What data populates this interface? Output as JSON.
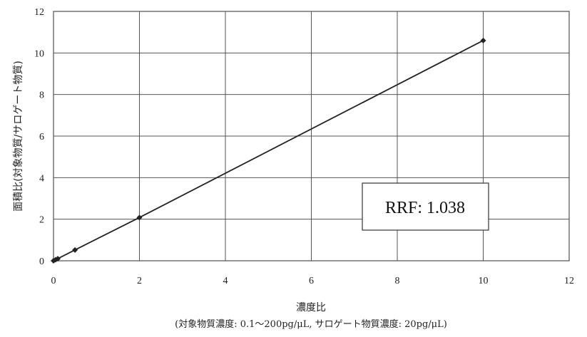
{
  "chart_data": {
    "type": "line",
    "title": "",
    "xlabel": "濃度比",
    "xlabel_note": "(対象物質濃度: 0.1～200pg/μL, サロゲート物質濃度: 20pg/μL)",
    "ylabel": "面積比(対象物質/サロゲート物質)",
    "xlim": [
      0,
      12
    ],
    "ylim": [
      0,
      12
    ],
    "xticks": [
      0,
      2,
      4,
      6,
      8,
      10,
      12
    ],
    "yticks": [
      0,
      2,
      4,
      6,
      8,
      10,
      12
    ],
    "grid": true,
    "series": [
      {
        "x": [
          0,
          0.05,
          0.1,
          0.5,
          2,
          10
        ],
        "y": [
          0,
          0.05,
          0.1,
          0.52,
          2.08,
          10.6
        ],
        "color": "#222222"
      }
    ],
    "annotation": "RRF: 1.038"
  }
}
